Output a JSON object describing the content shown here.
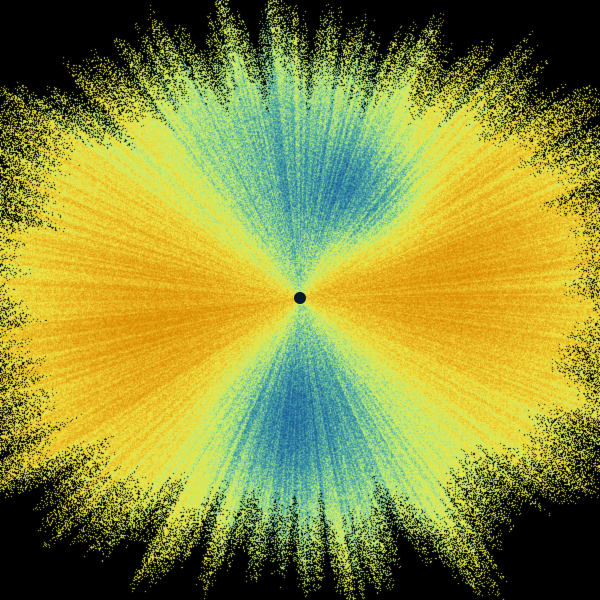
{
  "image": {
    "kind": "radar-style polar scan field",
    "background_color": "#000000",
    "colormap": [
      "#1f5f9a",
      "#3fa0a8",
      "#b8ec80",
      "#f0e640",
      "#e8b020",
      "#d88a00"
    ],
    "center_marker_color": "#0a1a2a"
  }
}
